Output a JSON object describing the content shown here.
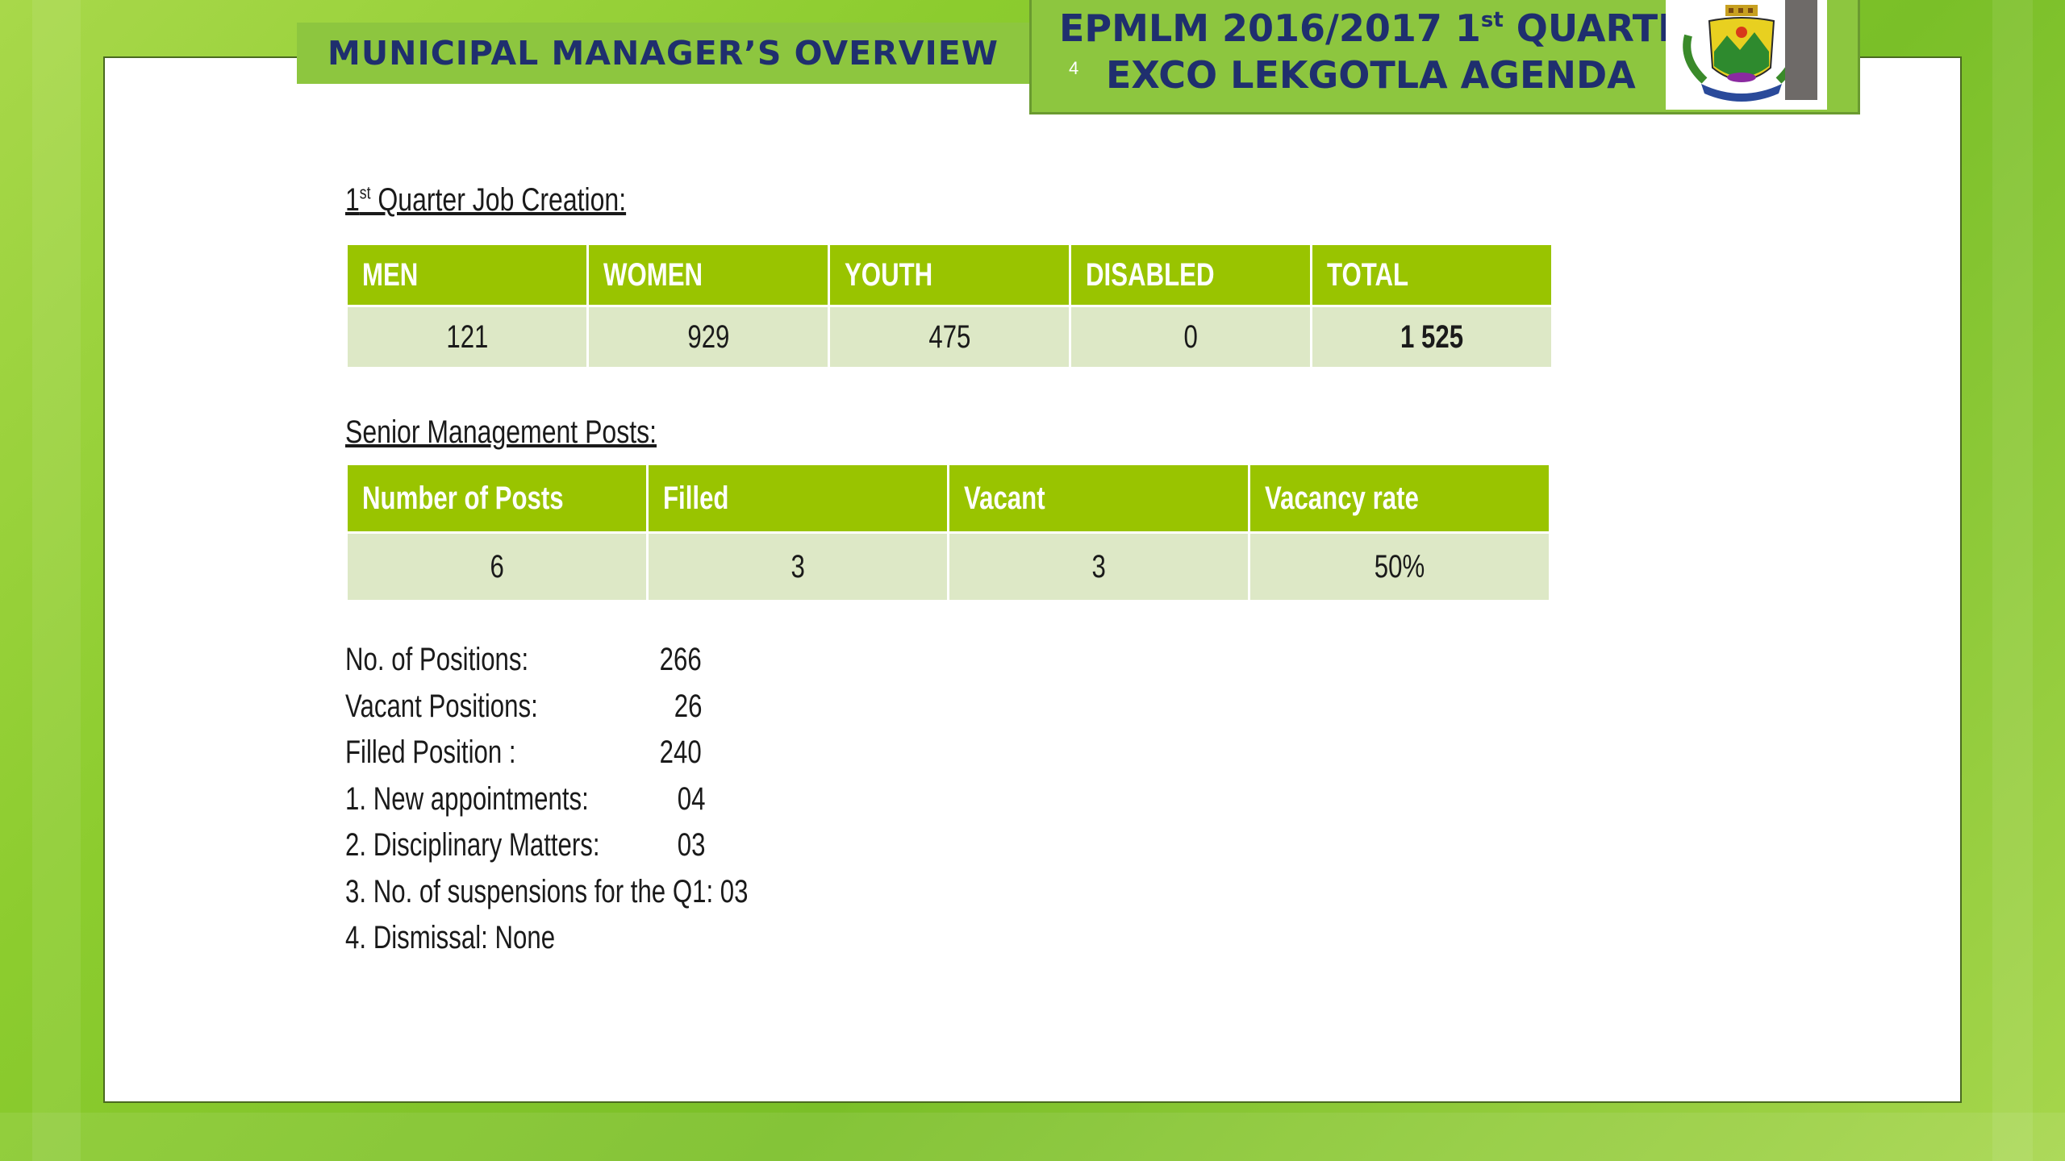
{
  "header": {
    "left_title": "MUNICIPAL MANAGER’S OVERVIEW",
    "right_line1_prefix": "EPMLM 2016/2017   1",
    "right_line1_sup": "st",
    "right_line1_suffix": " QUARTER",
    "right_line2": "EXCO LEKGOTLA AGENDA",
    "page_number": "4",
    "logo_icon": "municipal-crest"
  },
  "job_creation": {
    "heading_prefix": "1",
    "heading_sup": "st",
    "heading_suffix": " Quarter Job Creation:",
    "columns": [
      "MEN",
      "WOMEN",
      "YOUTH",
      "DISABLED",
      "TOTAL"
    ],
    "values": [
      "121",
      "929",
      "475",
      "0",
      "1 525"
    ]
  },
  "senior_management": {
    "heading": "Senior Management Posts:",
    "columns": [
      "Number of Posts",
      "Filled",
      "Vacant",
      "Vacancy rate"
    ],
    "values": [
      "6",
      "3",
      "3",
      "50%"
    ]
  },
  "stats": [
    {
      "label": "No. of Positions:",
      "value": "266"
    },
    {
      "label": "Vacant Positions:",
      "value": "26"
    },
    {
      "label": "Filled Position :",
      "value": "240"
    },
    {
      "label": "1. New appointments:",
      "value": "04"
    },
    {
      "label": "2. Disciplinary Matters:",
      "value": "03"
    },
    {
      "label": "3. No. of suspensions for the Q1: 03",
      "value": ""
    },
    {
      "label": "4. Dismissal:  None",
      "value": ""
    }
  ],
  "colors": {
    "header_green": "#8dc63f",
    "table_header_green": "#99c400",
    "table_cell": "#dde8c6",
    "title_navy": "#1f2f6e"
  }
}
